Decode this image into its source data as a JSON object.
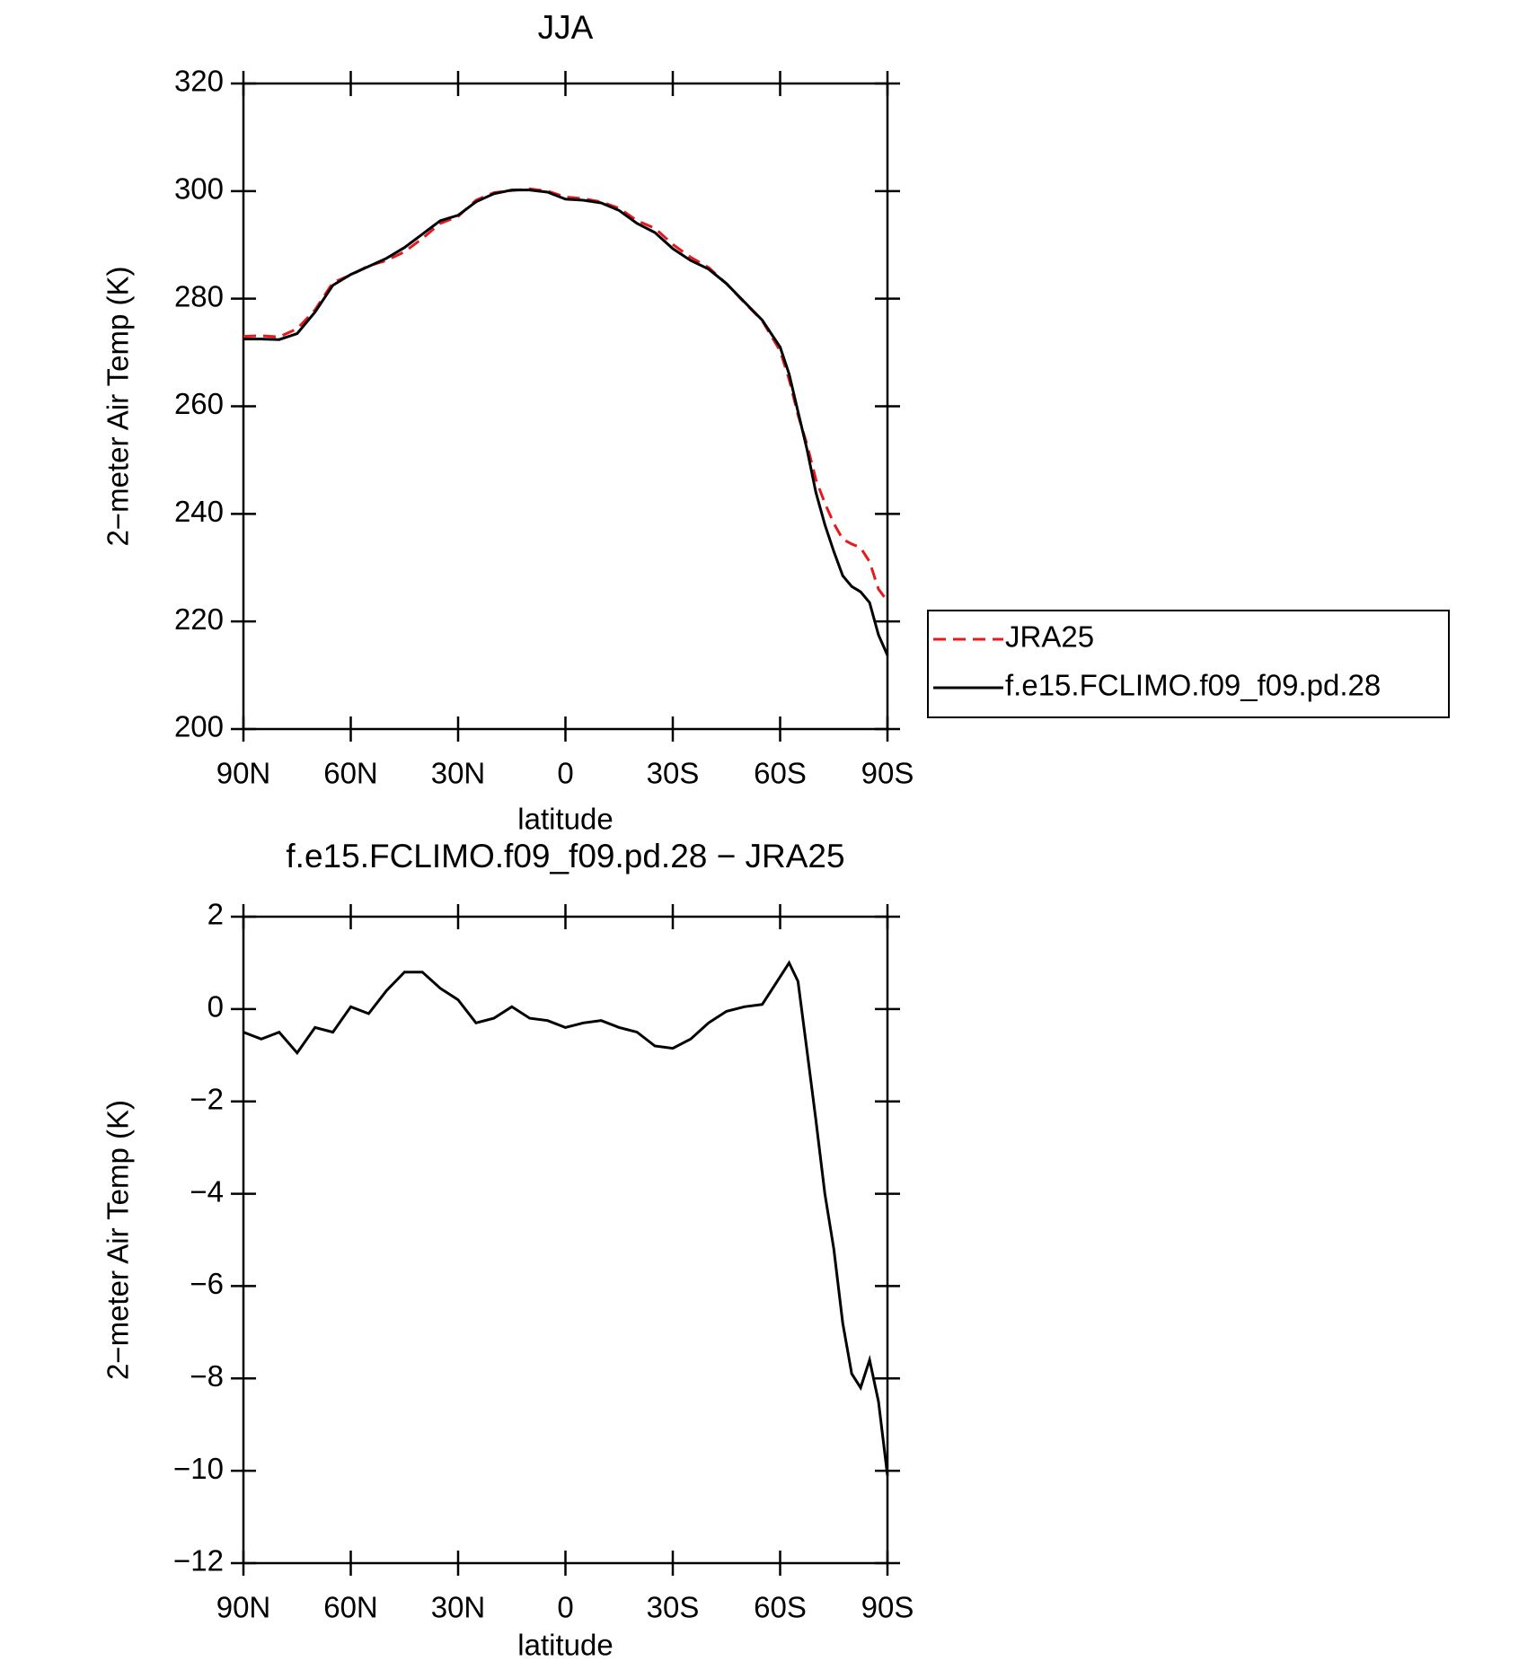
{
  "chart_data": [
    {
      "type": "line",
      "title": "JJA",
      "xlabel": "latitude",
      "ylabel": "2−meter Air Temp (K)",
      "x": [
        90,
        85,
        80,
        75,
        70,
        65,
        60,
        55,
        50,
        45,
        40,
        35,
        30,
        25,
        20,
        15,
        10,
        5,
        0,
        -5,
        -10,
        -15,
        -20,
        -25,
        -30,
        -35,
        -40,
        -45,
        -50,
        -55,
        -60,
        -62.5,
        -65,
        -67.5,
        -70,
        -72.5,
        -75,
        -77.5,
        -80,
        -82.5,
        -85,
        -87.5,
        -90
      ],
      "xlim": [
        90,
        -90
      ],
      "xticks": [
        {
          "value": 90,
          "label": "90N"
        },
        {
          "value": 60,
          "label": "60N"
        },
        {
          "value": 30,
          "label": "30N"
        },
        0,
        {
          "value": -30,
          "label": "30S"
        },
        {
          "value": -60,
          "label": "60S"
        },
        {
          "value": -90,
          "label": "90S"
        }
      ],
      "ylim": [
        200,
        320
      ],
      "yticks": [
        200,
        220,
        240,
        260,
        280,
        300,
        320
      ],
      "legend": "right",
      "series": [
        {
          "name": "JRA25",
          "color": "#e8191c",
          "line_style": "dashed",
          "values": [
            273,
            273.1,
            272.9,
            274.4,
            277.9,
            283,
            284.4,
            286.1,
            287.1,
            288.7,
            291.2,
            294,
            295.3,
            298.3,
            299.7,
            300.1,
            300.4,
            300,
            298.9,
            298.6,
            298,
            296.8,
            294.5,
            293.1,
            290.1,
            287.7,
            285.8,
            282.8,
            279.3,
            275.9,
            270.3,
            265,
            258.4,
            252.9,
            246.4,
            242,
            238.2,
            235.3,
            234.4,
            233.7,
            231.1,
            226,
            223.8
          ]
        },
        {
          "name": "f.e15.FCLIMO.f09_f09.pd.28",
          "color": "#000000",
          "line_style": "solid",
          "values": [
            272.5,
            272.5,
            272.4,
            273.5,
            277.5,
            282.5,
            284.5,
            286,
            287.5,
            289.5,
            292,
            294.5,
            295.5,
            298,
            299.5,
            300.2,
            300.2,
            299.8,
            298.5,
            298.3,
            297.8,
            296.4,
            294,
            292.3,
            289.3,
            287.1,
            285.5,
            282.8,
            279.4,
            276,
            271,
            266,
            259,
            252,
            244,
            238,
            233,
            228.5,
            226.5,
            225.5,
            223.5,
            217.5,
            213.7
          ]
        }
      ]
    },
    {
      "type": "line",
      "title": "f.e15.FCLIMO.f09_f09.pd.28 − JRA25",
      "xlabel": "latitude",
      "ylabel": "2−meter Air Temp (K)",
      "x": [
        90,
        85,
        80,
        75,
        70,
        65,
        60,
        55,
        50,
        45,
        40,
        35,
        30,
        25,
        20,
        15,
        10,
        5,
        0,
        -5,
        -10,
        -15,
        -20,
        -25,
        -30,
        -35,
        -40,
        -45,
        -50,
        -55,
        -60,
        -62.5,
        -65,
        -67.5,
        -70,
        -72.5,
        -75,
        -77.5,
        -80,
        -82.5,
        -85,
        -87.5,
        -90
      ],
      "xlim": [
        90,
        -90
      ],
      "xticks": [
        {
          "value": 90,
          "label": "90N"
        },
        {
          "value": 60,
          "label": "60N"
        },
        {
          "value": 30,
          "label": "30N"
        },
        0,
        {
          "value": -30,
          "label": "30S"
        },
        {
          "value": -60,
          "label": "60S"
        },
        {
          "value": -90,
          "label": "90S"
        }
      ],
      "ylim": [
        -12,
        2
      ],
      "yticks": [
        {
          "value": -12,
          "label": "−12"
        },
        {
          "value": -10,
          "label": "−10"
        },
        {
          "value": -8,
          "label": "−8"
        },
        {
          "value": -6,
          "label": "−6"
        },
        {
          "value": -4,
          "label": "−4"
        },
        {
          "value": -2,
          "label": "−2"
        },
        0,
        2
      ],
      "series": [
        {
          "color": "#000000",
          "line_style": "solid",
          "values": [
            -0.5,
            -0.65,
            -0.5,
            -0.95,
            -0.4,
            -0.5,
            0.05,
            -0.1,
            0.4,
            0.8,
            0.8,
            0.45,
            0.2,
            -0.3,
            -0.2,
            0.05,
            -0.2,
            -0.25,
            -0.4,
            -0.3,
            -0.25,
            -0.4,
            -0.5,
            -0.8,
            -0.85,
            -0.65,
            -0.3,
            -0.05,
            0.05,
            0.1,
            0.7,
            1.0,
            0.6,
            -0.9,
            -2.4,
            -4.0,
            -5.2,
            -6.8,
            -7.9,
            -8.2,
            -7.6,
            -8.5,
            -10.1
          ]
        }
      ]
    }
  ]
}
